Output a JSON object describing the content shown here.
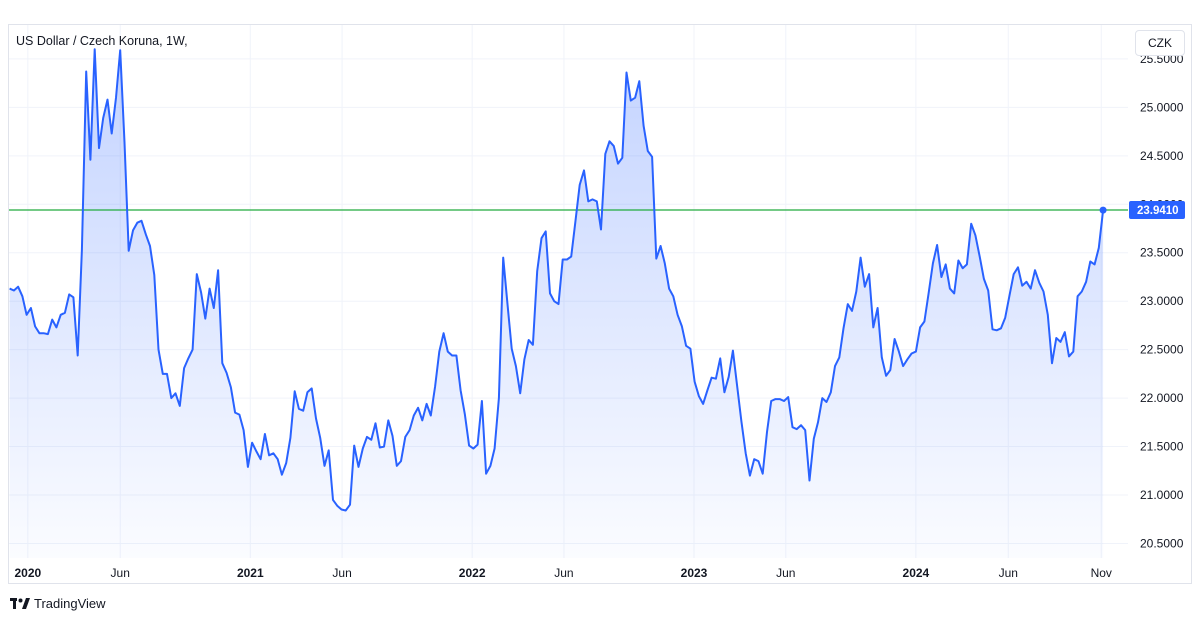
{
  "header": {
    "title": "US Dollar / Czech Koruna, 1W,",
    "currency": "CZK"
  },
  "footer": {
    "brand": "TradingView"
  },
  "colors": {
    "line": "#2962ff",
    "fill": "#2962ff",
    "hline": "#22ab3e",
    "grid": "#f0f3fa",
    "text": "#131722"
  },
  "chart_data": {
    "type": "area",
    "ylim": [
      20.35,
      25.85
    ],
    "y_ticks": [
      "20.5000",
      "21.0000",
      "21.5000",
      "22.0000",
      "22.5000",
      "23.0000",
      "23.5000",
      "24.0000",
      "24.5000",
      "25.0000",
      "25.5000"
    ],
    "x_ticks": [
      "2020",
      "Jun",
      "2021",
      "Jun",
      "2022",
      "Jun",
      "2023",
      "Jun",
      "2024",
      "Jun",
      "Nov"
    ],
    "x_tick_dates": [
      "2020-01-01",
      "2020-06-01",
      "2021-01-01",
      "2021-06-01",
      "2022-01-01",
      "2022-06-01",
      "2023-01-01",
      "2023-06-01",
      "2024-01-01",
      "2024-06-01",
      "2024-11-01"
    ],
    "x_range": [
      "2019-12-01",
      "2024-12-15"
    ],
    "last_value": "23.9410",
    "hline_value": 23.941,
    "series": [
      {
        "points": [
          [
            "2019-12-02",
            23.13
          ],
          [
            "2019-12-09",
            23.11
          ],
          [
            "2019-12-16",
            23.15
          ],
          [
            "2019-12-23",
            23.05
          ],
          [
            "2019-12-30",
            22.86
          ],
          [
            "2020-01-06",
            22.93
          ],
          [
            "2020-01-13",
            22.74
          ],
          [
            "2020-01-20",
            22.67
          ],
          [
            "2020-01-27",
            22.67
          ],
          [
            "2020-02-03",
            22.66
          ],
          [
            "2020-02-10",
            22.81
          ],
          [
            "2020-02-17",
            22.73
          ],
          [
            "2020-02-24",
            22.86
          ],
          [
            "2020-03-02",
            22.88
          ],
          [
            "2020-03-09",
            23.07
          ],
          [
            "2020-03-16",
            23.04
          ],
          [
            "2020-03-23",
            22.44
          ],
          [
            "2020-03-30",
            23.53
          ],
          [
            "2020-04-06",
            25.37
          ],
          [
            "2020-04-13",
            24.46
          ],
          [
            "2020-04-20",
            25.6
          ],
          [
            "2020-04-27",
            24.58
          ],
          [
            "2020-05-04",
            24.89
          ],
          [
            "2020-05-11",
            25.08
          ],
          [
            "2020-05-18",
            24.73
          ],
          [
            "2020-05-25",
            25.1
          ],
          [
            "2020-06-01",
            25.59
          ],
          [
            "2020-06-08",
            24.64
          ],
          [
            "2020-06-15",
            23.52
          ],
          [
            "2020-06-22",
            23.73
          ],
          [
            "2020-06-29",
            23.81
          ],
          [
            "2020-07-06",
            23.83
          ],
          [
            "2020-07-13",
            23.69
          ],
          [
            "2020-07-20",
            23.57
          ],
          [
            "2020-07-27",
            23.27
          ],
          [
            "2020-08-03",
            22.5
          ],
          [
            "2020-08-10",
            22.25
          ],
          [
            "2020-08-17",
            22.25
          ],
          [
            "2020-08-24",
            22.0
          ],
          [
            "2020-08-31",
            22.05
          ],
          [
            "2020-09-07",
            21.92
          ],
          [
            "2020-09-14",
            22.31
          ],
          [
            "2020-09-21",
            22.41
          ],
          [
            "2020-09-28",
            22.5
          ],
          [
            "2020-10-05",
            23.28
          ],
          [
            "2020-10-12",
            23.09
          ],
          [
            "2020-10-19",
            22.82
          ],
          [
            "2020-10-26",
            23.13
          ],
          [
            "2020-11-02",
            22.93
          ],
          [
            "2020-11-09",
            23.32
          ],
          [
            "2020-11-16",
            22.36
          ],
          [
            "2020-11-23",
            22.26
          ],
          [
            "2020-11-30",
            22.11
          ],
          [
            "2020-12-07",
            21.85
          ],
          [
            "2020-12-14",
            21.83
          ],
          [
            "2020-12-21",
            21.67
          ],
          [
            "2020-12-28",
            21.29
          ],
          [
            "2021-01-04",
            21.54
          ],
          [
            "2021-01-11",
            21.45
          ],
          [
            "2021-01-18",
            21.37
          ],
          [
            "2021-01-25",
            21.63
          ],
          [
            "2021-02-01",
            21.41
          ],
          [
            "2021-02-08",
            21.43
          ],
          [
            "2021-02-15",
            21.37
          ],
          [
            "2021-02-22",
            21.21
          ],
          [
            "2021-03-01",
            21.33
          ],
          [
            "2021-03-08",
            21.59
          ],
          [
            "2021-03-15",
            22.07
          ],
          [
            "2021-03-22",
            21.89
          ],
          [
            "2021-03-29",
            21.87
          ],
          [
            "2021-04-05",
            22.06
          ],
          [
            "2021-04-12",
            22.1
          ],
          [
            "2021-04-19",
            21.79
          ],
          [
            "2021-04-26",
            21.59
          ],
          [
            "2021-05-03",
            21.3
          ],
          [
            "2021-05-10",
            21.46
          ],
          [
            "2021-05-17",
            20.95
          ],
          [
            "2021-05-24",
            20.89
          ],
          [
            "2021-05-31",
            20.85
          ],
          [
            "2021-06-07",
            20.84
          ],
          [
            "2021-06-14",
            20.9
          ],
          [
            "2021-06-21",
            21.51
          ],
          [
            "2021-06-28",
            21.29
          ],
          [
            "2021-07-05",
            21.48
          ],
          [
            "2021-07-12",
            21.6
          ],
          [
            "2021-07-19",
            21.57
          ],
          [
            "2021-07-26",
            21.74
          ],
          [
            "2021-08-02",
            21.49
          ],
          [
            "2021-08-09",
            21.5
          ],
          [
            "2021-08-16",
            21.77
          ],
          [
            "2021-08-23",
            21.61
          ],
          [
            "2021-08-30",
            21.3
          ],
          [
            "2021-09-06",
            21.35
          ],
          [
            "2021-09-13",
            21.6
          ],
          [
            "2021-09-20",
            21.67
          ],
          [
            "2021-09-27",
            21.82
          ],
          [
            "2021-10-04",
            21.9
          ],
          [
            "2021-10-11",
            21.77
          ],
          [
            "2021-10-18",
            21.94
          ],
          [
            "2021-10-25",
            21.82
          ],
          [
            "2021-11-01",
            22.12
          ],
          [
            "2021-11-08",
            22.48
          ],
          [
            "2021-11-15",
            22.67
          ],
          [
            "2021-11-22",
            22.48
          ],
          [
            "2021-11-29",
            22.44
          ],
          [
            "2021-12-06",
            22.44
          ],
          [
            "2021-12-13",
            22.08
          ],
          [
            "2021-12-20",
            21.83
          ],
          [
            "2021-12-27",
            21.51
          ],
          [
            "2022-01-03",
            21.48
          ],
          [
            "2022-01-10",
            21.52
          ],
          [
            "2022-01-17",
            21.97
          ],
          [
            "2022-01-24",
            21.22
          ],
          [
            "2022-01-31",
            21.3
          ],
          [
            "2022-02-07",
            21.48
          ],
          [
            "2022-02-14",
            22.0
          ],
          [
            "2022-02-21",
            23.45
          ],
          [
            "2022-02-28",
            22.98
          ],
          [
            "2022-03-07",
            22.51
          ],
          [
            "2022-03-14",
            22.33
          ],
          [
            "2022-03-21",
            22.05
          ],
          [
            "2022-03-28",
            22.4
          ],
          [
            "2022-04-04",
            22.6
          ],
          [
            "2022-04-11",
            22.55
          ],
          [
            "2022-04-18",
            23.31
          ],
          [
            "2022-04-25",
            23.65
          ],
          [
            "2022-05-02",
            23.72
          ],
          [
            "2022-05-09",
            23.08
          ],
          [
            "2022-05-16",
            23.0
          ],
          [
            "2022-05-23",
            22.97
          ],
          [
            "2022-05-30",
            23.43
          ],
          [
            "2022-06-06",
            23.43
          ],
          [
            "2022-06-13",
            23.46
          ],
          [
            "2022-06-20",
            23.83
          ],
          [
            "2022-06-27",
            24.2
          ],
          [
            "2022-07-04",
            24.35
          ],
          [
            "2022-07-11",
            24.03
          ],
          [
            "2022-07-18",
            24.05
          ],
          [
            "2022-07-25",
            24.03
          ],
          [
            "2022-08-01",
            23.74
          ],
          [
            "2022-08-08",
            24.52
          ],
          [
            "2022-08-15",
            24.65
          ],
          [
            "2022-08-22",
            24.6
          ],
          [
            "2022-08-29",
            24.42
          ],
          [
            "2022-09-05",
            24.48
          ],
          [
            "2022-09-12",
            25.36
          ],
          [
            "2022-09-19",
            25.07
          ],
          [
            "2022-09-26",
            25.1
          ],
          [
            "2022-10-03",
            25.27
          ],
          [
            "2022-10-10",
            24.81
          ],
          [
            "2022-10-17",
            24.55
          ],
          [
            "2022-10-24",
            24.49
          ],
          [
            "2022-10-31",
            23.44
          ],
          [
            "2022-11-07",
            23.57
          ],
          [
            "2022-11-14",
            23.39
          ],
          [
            "2022-11-21",
            23.13
          ],
          [
            "2022-11-28",
            23.05
          ],
          [
            "2022-12-05",
            22.86
          ],
          [
            "2022-12-12",
            22.74
          ],
          [
            "2022-12-19",
            22.54
          ],
          [
            "2022-12-26",
            22.51
          ],
          [
            "2023-01-02",
            22.17
          ],
          [
            "2023-01-09",
            22.02
          ],
          [
            "2023-01-16",
            21.94
          ],
          [
            "2023-01-23",
            22.08
          ],
          [
            "2023-01-30",
            22.21
          ],
          [
            "2023-02-06",
            22.2
          ],
          [
            "2023-02-13",
            22.41
          ],
          [
            "2023-02-20",
            22.06
          ],
          [
            "2023-02-27",
            22.22
          ],
          [
            "2023-03-06",
            22.49
          ],
          [
            "2023-03-13",
            22.12
          ],
          [
            "2023-03-20",
            21.76
          ],
          [
            "2023-03-27",
            21.43
          ],
          [
            "2023-04-03",
            21.2
          ],
          [
            "2023-04-10",
            21.37
          ],
          [
            "2023-04-17",
            21.35
          ],
          [
            "2023-04-24",
            21.22
          ],
          [
            "2023-05-01",
            21.65
          ],
          [
            "2023-05-08",
            21.97
          ],
          [
            "2023-05-15",
            21.99
          ],
          [
            "2023-05-22",
            21.99
          ],
          [
            "2023-05-29",
            21.97
          ],
          [
            "2023-06-05",
            22.01
          ],
          [
            "2023-06-12",
            21.7
          ],
          [
            "2023-06-19",
            21.68
          ],
          [
            "2023-06-26",
            21.72
          ],
          [
            "2023-07-03",
            21.67
          ],
          [
            "2023-07-10",
            21.15
          ],
          [
            "2023-07-17",
            21.58
          ],
          [
            "2023-07-24",
            21.75
          ],
          [
            "2023-07-31",
            22.0
          ],
          [
            "2023-08-07",
            21.96
          ],
          [
            "2023-08-14",
            22.06
          ],
          [
            "2023-08-21",
            22.33
          ],
          [
            "2023-08-28",
            22.42
          ],
          [
            "2023-09-04",
            22.72
          ],
          [
            "2023-09-11",
            22.97
          ],
          [
            "2023-09-18",
            22.9
          ],
          [
            "2023-09-25",
            23.1
          ],
          [
            "2023-10-02",
            23.45
          ],
          [
            "2023-10-09",
            23.15
          ],
          [
            "2023-10-16",
            23.28
          ],
          [
            "2023-10-23",
            22.73
          ],
          [
            "2023-10-30",
            22.93
          ],
          [
            "2023-11-06",
            22.42
          ],
          [
            "2023-11-13",
            22.23
          ],
          [
            "2023-11-20",
            22.29
          ],
          [
            "2023-11-27",
            22.61
          ],
          [
            "2023-12-04",
            22.48
          ],
          [
            "2023-12-11",
            22.33
          ],
          [
            "2023-12-18",
            22.4
          ],
          [
            "2023-12-25",
            22.46
          ],
          [
            "2024-01-01",
            22.48
          ],
          [
            "2024-01-08",
            22.73
          ],
          [
            "2024-01-15",
            22.79
          ],
          [
            "2024-01-22",
            23.08
          ],
          [
            "2024-01-29",
            23.39
          ],
          [
            "2024-02-05",
            23.58
          ],
          [
            "2024-02-12",
            23.25
          ],
          [
            "2024-02-19",
            23.38
          ],
          [
            "2024-02-26",
            23.13
          ],
          [
            "2024-03-04",
            23.08
          ],
          [
            "2024-03-11",
            23.42
          ],
          [
            "2024-03-18",
            23.34
          ],
          [
            "2024-03-25",
            23.38
          ],
          [
            "2024-04-01",
            23.8
          ],
          [
            "2024-04-08",
            23.68
          ],
          [
            "2024-04-15",
            23.46
          ],
          [
            "2024-04-22",
            23.23
          ],
          [
            "2024-04-29",
            23.11
          ],
          [
            "2024-05-06",
            22.71
          ],
          [
            "2024-05-13",
            22.7
          ],
          [
            "2024-05-20",
            22.72
          ],
          [
            "2024-05-27",
            22.83
          ],
          [
            "2024-06-03",
            23.06
          ],
          [
            "2024-06-10",
            23.28
          ],
          [
            "2024-06-17",
            23.35
          ],
          [
            "2024-06-24",
            23.16
          ],
          [
            "2024-07-01",
            23.2
          ],
          [
            "2024-07-08",
            23.13
          ],
          [
            "2024-07-15",
            23.32
          ],
          [
            "2024-07-22",
            23.19
          ],
          [
            "2024-07-29",
            23.1
          ],
          [
            "2024-08-05",
            22.86
          ],
          [
            "2024-08-12",
            22.36
          ],
          [
            "2024-08-19",
            22.62
          ],
          [
            "2024-08-26",
            22.58
          ],
          [
            "2024-09-02",
            22.68
          ],
          [
            "2024-09-09",
            22.43
          ],
          [
            "2024-09-16",
            22.48
          ],
          [
            "2024-09-23",
            23.05
          ],
          [
            "2024-09-30",
            23.1
          ],
          [
            "2024-10-07",
            23.2
          ],
          [
            "2024-10-14",
            23.41
          ],
          [
            "2024-10-21",
            23.38
          ],
          [
            "2024-10-28",
            23.55
          ],
          [
            "2024-11-04",
            23.94
          ]
        ]
      }
    ]
  }
}
